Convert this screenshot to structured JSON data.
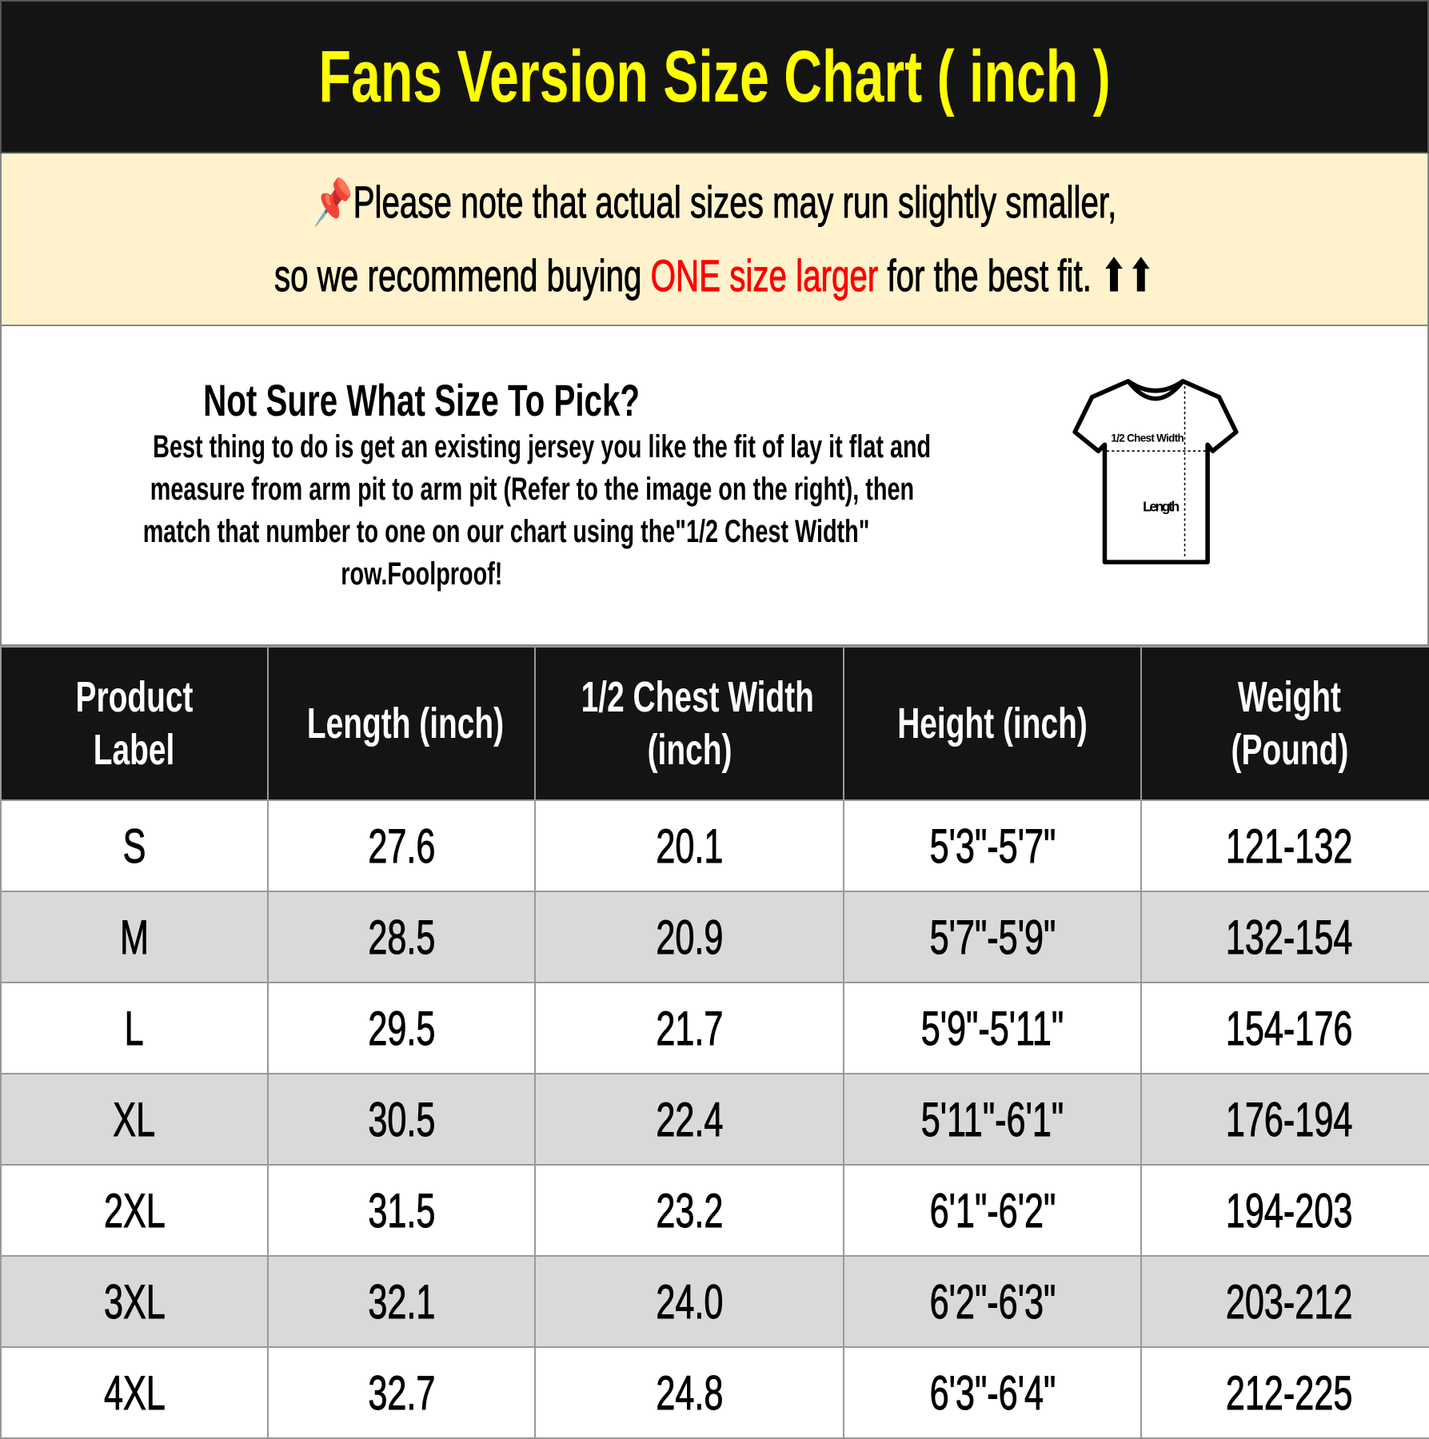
{
  "title": "Fans Version Size Chart ( inch )",
  "note": {
    "pin_icon": "pushpin-icon",
    "line1": "Please note that actual sizes may run slightly smaller,",
    "line2_before": "so we recommend buying ",
    "line2_highlight": "ONE size larger",
    "line2_after": " for the best fit.",
    "arrows": "⬆⬆",
    "highlight_color": "#ff0000"
  },
  "info": {
    "heading": "Not Sure What Size To Pick?",
    "lines": [
      "Best thing to do is get an existing jersey you like the fit of lay it flat and",
      "measure from arm pit to arm pit (Refer to the image on the right), then",
      "match that number to one on our chart using the\"1/2 Chest Width\"",
      "row.Foolproof!"
    ],
    "diagram": {
      "chest_label": "1/2 Chest Width",
      "length_label": "Length"
    }
  },
  "table": {
    "headers": [
      [
        "Product",
        "Label"
      ],
      [
        "Length (inch)"
      ],
      [
        "1/2 Chest Width",
        "(inch)"
      ],
      [
        "Height (inch)"
      ],
      [
        "Weight",
        "(Pound)"
      ]
    ],
    "rows": [
      [
        "S",
        "27.6",
        "20.1",
        "5'3\"-5'7\"",
        "121-132"
      ],
      [
        "M",
        "28.5",
        "20.9",
        "5'7\"-5'9\"",
        "132-154"
      ],
      [
        "L",
        "29.5",
        "21.7",
        "5'9\"-5'11\"",
        "154-176"
      ],
      [
        "XL",
        "30.5",
        "22.4",
        "5'11\"-6'1\"",
        "176-194"
      ],
      [
        "2XL",
        "31.5",
        "23.2",
        "6'1\"-6'2\"",
        "194-203"
      ],
      [
        "3XL",
        "32.1",
        "24.0",
        "6'2\"-6'3\"",
        "203-212"
      ],
      [
        "4XL",
        "32.7",
        "24.8",
        "6'3\"-6'4\"",
        "212-225"
      ]
    ]
  }
}
